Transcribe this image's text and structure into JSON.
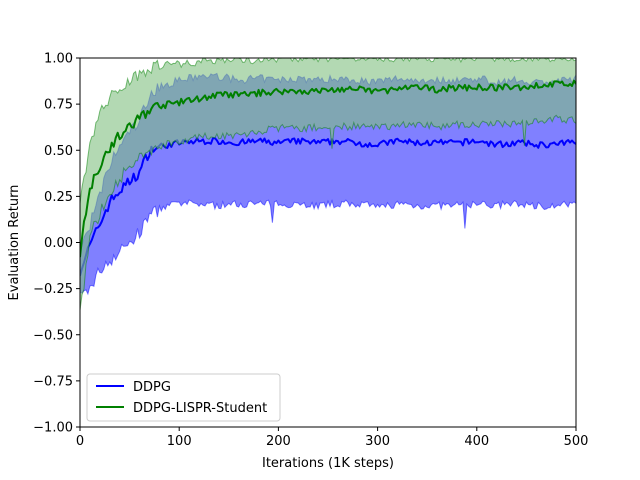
{
  "chart_data": {
    "type": "line",
    "title": "",
    "xlabel": "Iterations (1K steps)",
    "ylabel": "Evaluation Return",
    "xlim": [
      0,
      500
    ],
    "ylim": [
      -1.0,
      1.0
    ],
    "xticks": [
      "0",
      "100",
      "200",
      "300",
      "400",
      "500"
    ],
    "yticks": [
      "−1.00",
      "−0.75",
      "−0.50",
      "−0.25",
      "0.00",
      "0.25",
      "0.50",
      "0.75",
      "1.00"
    ],
    "grid": false,
    "legend_position": "lower-left",
    "x": [
      0,
      10,
      20,
      30,
      40,
      50,
      60,
      70,
      80,
      90,
      100,
      120,
      140,
      160,
      180,
      200,
      220,
      240,
      260,
      280,
      300,
      320,
      340,
      360,
      380,
      400,
      420,
      440,
      460,
      480,
      500
    ],
    "series": [
      {
        "name": "DDPG",
        "color": "#0000ff",
        "band_color": "#8080ff",
        "mean": [
          -0.15,
          -0.02,
          0.1,
          0.22,
          0.28,
          0.33,
          0.38,
          0.5,
          0.52,
          0.53,
          0.54,
          0.55,
          0.55,
          0.54,
          0.55,
          0.54,
          0.55,
          0.54,
          0.55,
          0.54,
          0.53,
          0.55,
          0.54,
          0.54,
          0.54,
          0.55,
          0.53,
          0.54,
          0.53,
          0.53,
          0.55
        ],
        "lower": [
          -0.3,
          -0.25,
          -0.15,
          -0.1,
          -0.05,
          0.0,
          0.05,
          0.15,
          0.18,
          0.2,
          0.21,
          0.21,
          0.2,
          0.21,
          0.21,
          0.21,
          0.21,
          0.2,
          0.21,
          0.21,
          0.19,
          0.21,
          0.2,
          0.2,
          0.2,
          0.21,
          0.2,
          0.21,
          0.2,
          0.2,
          0.21
        ],
        "upper": [
          -0.05,
          0.1,
          0.25,
          0.42,
          0.52,
          0.6,
          0.66,
          0.8,
          0.84,
          0.86,
          0.88,
          0.9,
          0.9,
          0.88,
          0.89,
          0.88,
          0.89,
          0.88,
          0.89,
          0.88,
          0.87,
          0.89,
          0.88,
          0.88,
          0.88,
          0.89,
          0.87,
          0.88,
          0.87,
          0.87,
          0.89
        ]
      },
      {
        "name": "DDPG-LISPR-Student",
        "color": "#008000",
        "band_color": "#80c080",
        "mean": [
          -0.05,
          0.3,
          0.42,
          0.52,
          0.58,
          0.62,
          0.68,
          0.72,
          0.74,
          0.75,
          0.76,
          0.78,
          0.8,
          0.8,
          0.81,
          0.82,
          0.82,
          0.82,
          0.83,
          0.83,
          0.82,
          0.83,
          0.84,
          0.83,
          0.84,
          0.84,
          0.84,
          0.84,
          0.85,
          0.86,
          0.86
        ],
        "lower": [
          -0.4,
          0.05,
          0.15,
          0.28,
          0.35,
          0.4,
          0.45,
          0.5,
          0.52,
          0.54,
          0.55,
          0.57,
          0.58,
          0.58,
          0.6,
          0.62,
          0.62,
          0.62,
          0.63,
          0.63,
          0.62,
          0.64,
          0.64,
          0.63,
          0.64,
          0.64,
          0.64,
          0.65,
          0.66,
          0.67,
          0.66
        ],
        "upper": [
          0.2,
          0.55,
          0.7,
          0.78,
          0.84,
          0.88,
          0.92,
          0.95,
          0.96,
          0.97,
          0.97,
          0.98,
          0.99,
          0.99,
          0.99,
          1.0,
          1.0,
          1.0,
          1.0,
          1.0,
          1.0,
          1.0,
          1.0,
          1.0,
          1.0,
          1.0,
          1.0,
          1.0,
          1.0,
          1.0,
          1.0
        ]
      }
    ]
  }
}
